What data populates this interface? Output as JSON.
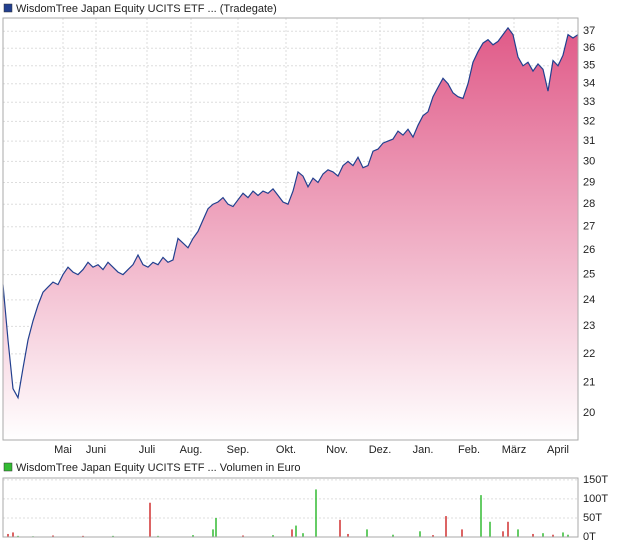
{
  "chart_data": [
    {
      "type": "area",
      "legend": "WisdomTree Japan Equity UCITS ETF ... (Tradegate)",
      "color": "#22408f",
      "fill_color": "#e05a88",
      "log_scale": true,
      "grid": true,
      "xlim": [
        0,
        115
      ],
      "xticks": [
        {
          "value": 12,
          "label": "Mai"
        },
        {
          "value": 18.6,
          "label": "Juni"
        },
        {
          "value": 28.8,
          "label": "Juli"
        },
        {
          "value": 37.6,
          "label": "Aug."
        },
        {
          "value": 47,
          "label": "Sep."
        },
        {
          "value": 56.6,
          "label": "Okt."
        },
        {
          "value": 66.8,
          "label": "Nov."
        },
        {
          "value": 75.4,
          "label": "Dez."
        },
        {
          "value": 84,
          "label": "Jan."
        },
        {
          "value": 93.2,
          "label": "Feb."
        },
        {
          "value": 102.2,
          "label": "März"
        },
        {
          "value": 111,
          "label": "April"
        }
      ],
      "ylim": [
        19.15,
        37.8
      ],
      "yticks": [
        20,
        21,
        22,
        23,
        24,
        25,
        26,
        27,
        28,
        29,
        30,
        31,
        32,
        33,
        34,
        35,
        36,
        37
      ],
      "values": [
        24.6,
        22.5,
        20.8,
        20.5,
        21.5,
        22.5,
        23.2,
        23.8,
        24.3,
        24.5,
        24.7,
        24.6,
        25.0,
        25.3,
        25.1,
        25.0,
        25.2,
        25.5,
        25.3,
        25.4,
        25.2,
        25.5,
        25.3,
        25.1,
        25.0,
        25.2,
        25.4,
        25.8,
        25.4,
        25.3,
        25.5,
        25.4,
        25.7,
        25.5,
        25.6,
        26.5,
        26.3,
        26.1,
        26.5,
        26.8,
        27.3,
        27.8,
        28.0,
        28.1,
        28.3,
        28.0,
        27.9,
        28.2,
        28.5,
        28.3,
        28.6,
        28.4,
        28.6,
        28.5,
        28.7,
        28.4,
        28.1,
        28.0,
        28.6,
        29.5,
        29.3,
        28.8,
        29.2,
        29.0,
        29.4,
        29.6,
        29.5,
        29.3,
        29.8,
        30.0,
        29.8,
        30.2,
        29.7,
        29.8,
        30.5,
        30.6,
        30.9,
        31.0,
        31.1,
        31.5,
        31.3,
        31.6,
        31.2,
        31.8,
        32.3,
        32.5,
        33.3,
        33.8,
        34.3,
        34.0,
        33.5,
        33.3,
        33.2,
        34.0,
        35.2,
        35.8,
        36.3,
        36.5,
        36.2,
        36.4,
        36.8,
        37.2,
        36.8,
        35.5,
        35.0,
        35.2,
        34.7,
        35.1,
        34.8,
        33.6,
        35.3,
        35.0,
        35.6,
        36.8,
        36.6,
        36.8
      ]
    },
    {
      "type": "bar",
      "legend": "WisdomTree Japan Equity UCITS ETF ... Volumen in Euro",
      "grid": true,
      "xlim": [
        0,
        115
      ],
      "ylim": [
        0,
        155000
      ],
      "yticks": [
        {
          "value": 0,
          "label": "0T"
        },
        {
          "value": 50000,
          "label": "50T"
        },
        {
          "value": 100000,
          "label": "100T"
        },
        {
          "value": 150000,
          "label": "150T"
        }
      ],
      "x": [
        1,
        2,
        3,
        6,
        10,
        16,
        22,
        29.4,
        31,
        38,
        42,
        42.6,
        48,
        54,
        57.8,
        58.6,
        60,
        62.6,
        67.4,
        69,
        72.8,
        78,
        83.4,
        86,
        88.6,
        91.8,
        95.6,
        97.4,
        100,
        101,
        103,
        106,
        108,
        110,
        112,
        113
      ],
      "values": [
        8000,
        12000,
        3000,
        2000,
        4000,
        3000,
        3000,
        90000,
        3000,
        5000,
        20000,
        50000,
        4000,
        5000,
        20000,
        30000,
        10000,
        125000,
        45000,
        8000,
        20000,
        6000,
        15000,
        5000,
        55000,
        20000,
        110000,
        40000,
        15000,
        40000,
        20000,
        8000,
        10000,
        6000,
        12000,
        6000
      ],
      "colors": [
        "#d03030",
        "#d03030",
        "#33bb33",
        "#33bb33",
        "#d03030",
        "#d03030",
        "#33bb33",
        "#d03030",
        "#33bb33",
        "#33bb33",
        "#33bb33",
        "#33bb33",
        "#d03030",
        "#33bb33",
        "#d03030",
        "#33bb33",
        "#33bb33",
        "#33bb33",
        "#d03030",
        "#d03030",
        "#33bb33",
        "#33bb33",
        "#33bb33",
        "#d03030",
        "#d03030",
        "#d03030",
        "#33bb33",
        "#33bb33",
        "#d03030",
        "#d03030",
        "#33bb33",
        "#d03030",
        "#33bb33",
        "#d03030",
        "#33bb33",
        "#33bb33"
      ]
    }
  ]
}
